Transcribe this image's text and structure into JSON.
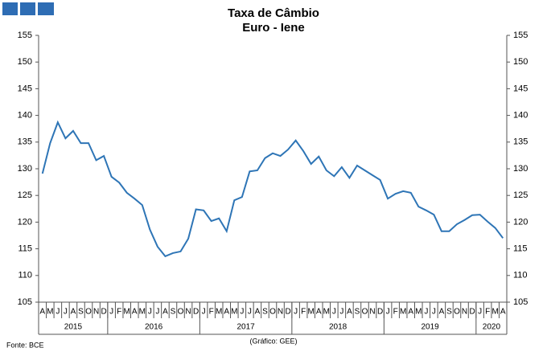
{
  "chart_data": {
    "type": "line",
    "title": "Taxa de Câmbio",
    "subtitle": "Euro - Iene",
    "categories": [
      "A",
      "M",
      "J",
      "J",
      "A",
      "S",
      "O",
      "N",
      "D",
      "J",
      "F",
      "M",
      "A",
      "M",
      "J",
      "J",
      "A",
      "S",
      "O",
      "N",
      "D",
      "J",
      "F",
      "M",
      "A",
      "M",
      "J",
      "J",
      "A",
      "S",
      "O",
      "N",
      "D",
      "J",
      "F",
      "M",
      "A",
      "M",
      "J",
      "J",
      "A",
      "S",
      "O",
      "N",
      "D",
      "J",
      "F",
      "M",
      "A",
      "M",
      "J",
      "J",
      "A",
      "S",
      "O",
      "N",
      "D",
      "J",
      "F",
      "M",
      "A"
    ],
    "x_groups": [
      {
        "label": "2015",
        "months": 9
      },
      {
        "label": "2016",
        "months": 12
      },
      {
        "label": "2017",
        "months": 12
      },
      {
        "label": "2018",
        "months": 12
      },
      {
        "label": "2019",
        "months": 12
      },
      {
        "label": "2020",
        "months": 4
      }
    ],
    "series": [
      {
        "name": "Euro - Iene",
        "color": "#2e75b6",
        "values": [
          129.1,
          134.8,
          138.7,
          135.7,
          137.1,
          134.8,
          134.8,
          131.6,
          132.4,
          128.5,
          127.4,
          125.5,
          124.4,
          123.2,
          118.6,
          115.4,
          113.6,
          114.2,
          114.5,
          116.9,
          122.4,
          122.2,
          120.2,
          120.7,
          118.3,
          124.1,
          124.7,
          129.5,
          129.7,
          132.0,
          132.9,
          132.4,
          133.6,
          135.3,
          133.3,
          130.9,
          132.3,
          129.7,
          128.6,
          130.3,
          128.3,
          130.6,
          129.7,
          128.8,
          127.9,
          124.4,
          125.3,
          125.8,
          125.5,
          122.9,
          122.2,
          121.4,
          118.3,
          118.3,
          119.6,
          120.4,
          121.3,
          121.4,
          120.1,
          118.9,
          117.0
        ]
      }
    ],
    "ylim": [
      105,
      155
    ],
    "yticks": [
      105,
      110,
      115,
      120,
      125,
      130,
      135,
      140,
      145,
      150,
      155
    ],
    "y2lim": [
      105,
      155
    ],
    "y2ticks": [
      105,
      110,
      115,
      120,
      125,
      130,
      135,
      140,
      145,
      150,
      155
    ],
    "grid": false,
    "source": "Fonte: BCE",
    "credit": "(Gráfico: GEE)"
  }
}
